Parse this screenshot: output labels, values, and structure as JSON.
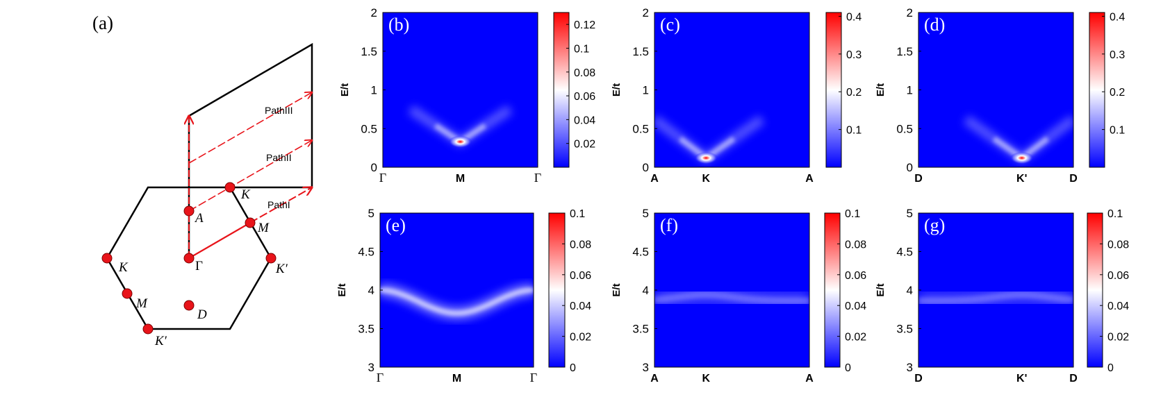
{
  "figure": {
    "panel_a": {
      "label": "(a)",
      "points": {
        "K_top": "K",
        "K_left": "K",
        "M_right": "M",
        "M_left": "M",
        "K_prime_right": "K′",
        "K_prime_bottom": "K′",
        "A": "A",
        "Gamma": "Γ",
        "D": "D"
      },
      "paths": [
        "PathI",
        "PathII",
        "PathIII"
      ],
      "colors": {
        "point": "#e8141a",
        "path": "#e8141a",
        "outline": "#000000"
      }
    }
  },
  "chart_data": [
    {
      "type": "heatmap",
      "label": "(b)",
      "ylabel": "E/t",
      "ylim": [
        0,
        2
      ],
      "yticks": [
        "2",
        "1.5",
        "1",
        "0.5",
        "0"
      ],
      "xticks": [
        "Γ",
        "M",
        "Γ"
      ],
      "colorbar": {
        "ticks": [
          "0.12",
          "0.1",
          "0.08",
          "0.06",
          "0.04",
          "0.02"
        ],
        "max": 0.13
      },
      "feature": "V-shaped spectral weight with bright peak at M near E/t = 0.33"
    },
    {
      "type": "heatmap",
      "label": "(c)",
      "ylabel": "E/t",
      "ylim": [
        0,
        2
      ],
      "yticks": [
        "2",
        "1.5",
        "1",
        "0.5",
        "0"
      ],
      "xticks": [
        "A",
        "K",
        "A"
      ],
      "colorbar": {
        "ticks": [
          "0.4",
          "0.3",
          "0.2",
          "0.1"
        ],
        "max": 0.41
      },
      "feature": "V-shaped spectral weight with bright peak at K near E/t = 0.12"
    },
    {
      "type": "heatmap",
      "label": "(d)",
      "ylabel": "E/t",
      "ylim": [
        0,
        2
      ],
      "yticks": [
        "2",
        "1.5",
        "1",
        "0.5",
        "0"
      ],
      "xticks": [
        "D",
        "K'",
        "D"
      ],
      "colorbar": {
        "ticks": [
          "0.4",
          "0.3",
          "0.2",
          "0.1"
        ],
        "max": 0.41
      },
      "feature": "V-shaped spectral weight with bright peak at K' near E/t = 0.12"
    },
    {
      "type": "heatmap",
      "label": "(e)",
      "ylabel": "E/t",
      "ylim": [
        3,
        5
      ],
      "yticks": [
        "5",
        "4.5",
        "4",
        "3.5",
        "3"
      ],
      "xticks": [
        "Γ",
        "M",
        "Γ"
      ],
      "colorbar": {
        "ticks": [
          "0.1",
          "0.08",
          "0.06",
          "0.04",
          "0.02",
          "0"
        ],
        "max": 0.1
      },
      "feature": "dispersive band dipping from E/t = 4.0 at Γ to 3.7 at M"
    },
    {
      "type": "heatmap",
      "label": "(f)",
      "ylabel": "E/t",
      "ylim": [
        3,
        5
      ],
      "yticks": [
        "5",
        "4.5",
        "4",
        "3.5",
        "3"
      ],
      "xticks": [
        "A",
        "K",
        "A"
      ],
      "colorbar": {
        "ticks": [
          "0.1",
          "0.08",
          "0.06",
          "0.04",
          "0.02",
          "0"
        ],
        "max": 0.1
      },
      "feature": "faint nearly flat band near E/t = 3.85 to 3.95"
    },
    {
      "type": "heatmap",
      "label": "(g)",
      "ylabel": "E/t",
      "ylim": [
        3,
        5
      ],
      "yticks": [
        "5",
        "4.5",
        "4",
        "3.5",
        "3"
      ],
      "xticks": [
        "D",
        "K'",
        "D"
      ],
      "colorbar": {
        "ticks": [
          "0.1",
          "0.08",
          "0.06",
          "0.04",
          "0.02",
          "0"
        ],
        "max": 0.1
      },
      "feature": "faint nearly flat band near E/t = 3.85 to 3.95"
    }
  ]
}
